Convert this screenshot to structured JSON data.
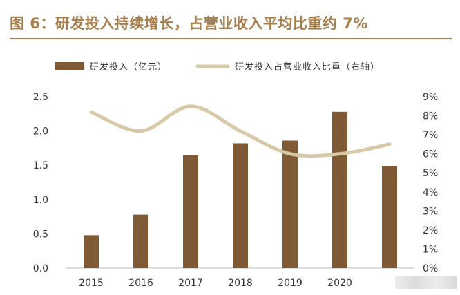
{
  "figure": {
    "title": "图 6：研发投入持续增长，占营业收入平均比重约 7%"
  },
  "chart_data": {
    "type": "bar",
    "categories": [
      "2015",
      "2016",
      "2017",
      "2018",
      "2019",
      "2020",
      ""
    ],
    "series": [
      {
        "name": "研发投入（亿元）",
        "type": "bar",
        "axis": "left",
        "color": "#7f5a34",
        "values": [
          0.48,
          0.78,
          1.65,
          1.82,
          1.86,
          2.28,
          1.49
        ]
      },
      {
        "name": "研发投入占营业收入比重（右轴）",
        "type": "line",
        "axis": "right",
        "color": "#d8c9a6",
        "values": [
          0.082,
          0.072,
          0.085,
          0.072,
          0.06,
          0.06,
          0.065
        ]
      }
    ],
    "y_left": {
      "lim": [
        0,
        2.5
      ],
      "ticks": [
        "0.0",
        "0.5",
        "1.0",
        "1.5",
        "2.0",
        "2.5"
      ]
    },
    "y_right": {
      "lim": [
        0,
        0.09
      ],
      "ticks": [
        "0%",
        "1%",
        "2%",
        "3%",
        "4%",
        "5%",
        "6%",
        "7%",
        "8%",
        "9%"
      ]
    },
    "legend": "top",
    "grid": false
  }
}
